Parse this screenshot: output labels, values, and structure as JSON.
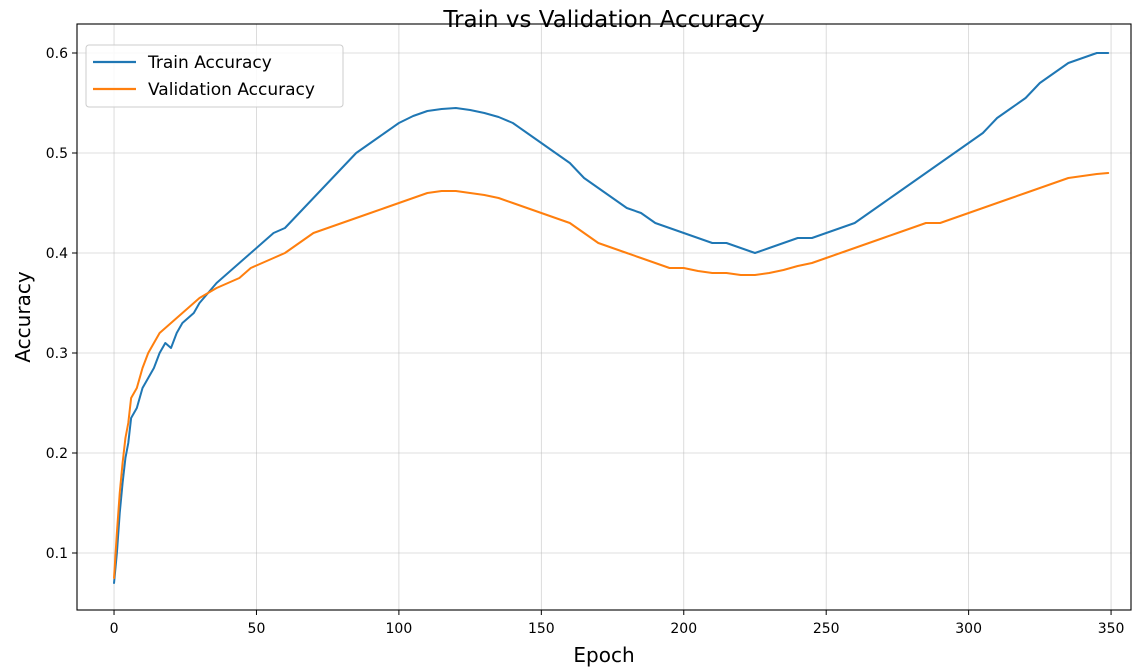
{
  "chart_data": {
    "type": "line",
    "title": "Train vs Validation Accuracy",
    "xlabel": "Epoch",
    "ylabel": "Accuracy",
    "xlim": [
      -13,
      357
    ],
    "ylim": [
      0.043,
      0.629
    ],
    "xticks": [
      0,
      50,
      100,
      150,
      200,
      250,
      300,
      350
    ],
    "yticks": [
      0.1,
      0.2,
      0.3,
      0.4,
      0.5,
      0.6
    ],
    "ytick_labels": [
      "0.1",
      "0.2",
      "0.3",
      "0.4",
      "0.5",
      "0.6"
    ],
    "grid": true,
    "legend_position": "upper-left",
    "series": [
      {
        "name": "Train Accuracy",
        "color": "#1f77b4",
        "x": [
          0,
          1,
          2,
          3,
          4,
          5,
          6,
          7,
          8,
          10,
          12,
          14,
          16,
          18,
          20,
          22,
          24,
          26,
          28,
          30,
          33,
          36,
          40,
          44,
          48,
          52,
          56,
          60,
          65,
          70,
          75,
          80,
          85,
          90,
          95,
          100,
          105,
          110,
          115,
          120,
          125,
          130,
          135,
          140,
          145,
          150,
          155,
          160,
          165,
          170,
          175,
          180,
          185,
          190,
          195,
          200,
          205,
          210,
          215,
          220,
          225,
          230,
          235,
          240,
          245,
          250,
          255,
          260,
          265,
          270,
          275,
          280,
          285,
          290,
          295,
          300,
          305,
          310,
          315,
          320,
          325,
          330,
          335,
          340,
          345,
          349
        ],
        "y": [
          0.07,
          0.1,
          0.14,
          0.17,
          0.195,
          0.21,
          0.235,
          0.24,
          0.245,
          0.265,
          0.275,
          0.285,
          0.3,
          0.31,
          0.305,
          0.32,
          0.33,
          0.335,
          0.34,
          0.35,
          0.36,
          0.37,
          0.38,
          0.39,
          0.4,
          0.41,
          0.42,
          0.425,
          0.44,
          0.455,
          0.47,
          0.485,
          0.5,
          0.51,
          0.52,
          0.53,
          0.537,
          0.542,
          0.544,
          0.545,
          0.543,
          0.54,
          0.536,
          0.53,
          0.52,
          0.51,
          0.5,
          0.49,
          0.475,
          0.465,
          0.455,
          0.445,
          0.44,
          0.43,
          0.425,
          0.42,
          0.415,
          0.41,
          0.41,
          0.405,
          0.4,
          0.405,
          0.41,
          0.415,
          0.415,
          0.42,
          0.425,
          0.43,
          0.44,
          0.45,
          0.46,
          0.47,
          0.48,
          0.49,
          0.5,
          0.51,
          0.52,
          0.535,
          0.545,
          0.555,
          0.57,
          0.58,
          0.59,
          0.595,
          0.6,
          0.6
        ]
      },
      {
        "name": "Validation Accuracy",
        "color": "#ff7f0e",
        "x": [
          0,
          1,
          2,
          3,
          4,
          5,
          6,
          7,
          8,
          10,
          12,
          14,
          16,
          18,
          20,
          22,
          24,
          26,
          28,
          30,
          33,
          36,
          40,
          44,
          48,
          52,
          56,
          60,
          65,
          70,
          75,
          80,
          85,
          90,
          95,
          100,
          105,
          110,
          115,
          120,
          125,
          130,
          135,
          140,
          145,
          150,
          155,
          160,
          165,
          170,
          175,
          180,
          185,
          190,
          195,
          200,
          205,
          210,
          215,
          220,
          225,
          230,
          235,
          240,
          245,
          250,
          255,
          260,
          265,
          270,
          275,
          280,
          285,
          290,
          295,
          300,
          305,
          310,
          315,
          320,
          325,
          330,
          335,
          340,
          345,
          349
        ],
        "y": [
          0.075,
          0.12,
          0.16,
          0.19,
          0.215,
          0.23,
          0.255,
          0.26,
          0.265,
          0.285,
          0.3,
          0.31,
          0.32,
          0.325,
          0.33,
          0.335,
          0.34,
          0.345,
          0.35,
          0.355,
          0.36,
          0.365,
          0.37,
          0.375,
          0.385,
          0.39,
          0.395,
          0.4,
          0.41,
          0.42,
          0.425,
          0.43,
          0.435,
          0.44,
          0.445,
          0.45,
          0.455,
          0.46,
          0.462,
          0.462,
          0.46,
          0.458,
          0.455,
          0.45,
          0.445,
          0.44,
          0.435,
          0.43,
          0.42,
          0.41,
          0.405,
          0.4,
          0.395,
          0.39,
          0.385,
          0.385,
          0.382,
          0.38,
          0.38,
          0.378,
          0.378,
          0.38,
          0.383,
          0.387,
          0.39,
          0.395,
          0.4,
          0.405,
          0.41,
          0.415,
          0.42,
          0.425,
          0.43,
          0.43,
          0.435,
          0.44,
          0.445,
          0.45,
          0.455,
          0.46,
          0.465,
          0.47,
          0.475,
          0.477,
          0.479,
          0.48
        ]
      }
    ]
  }
}
